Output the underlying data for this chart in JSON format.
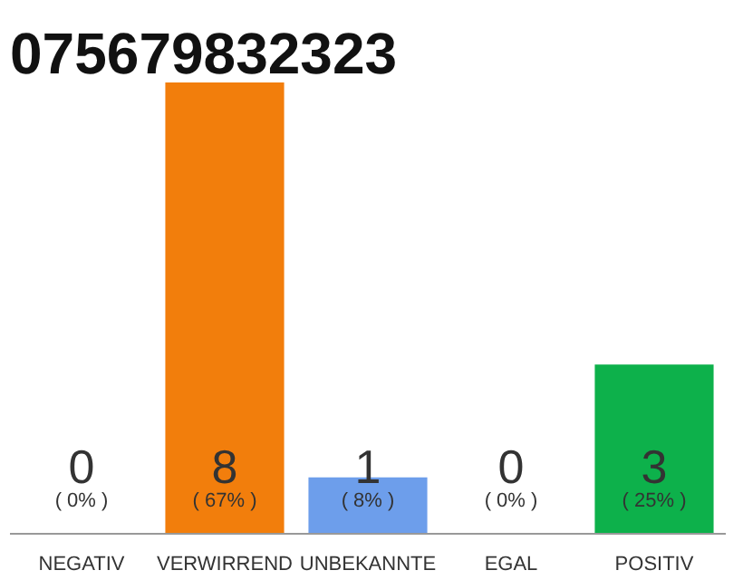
{
  "chart_data": {
    "type": "bar",
    "title": "075679832323",
    "categories": [
      "NEGATIV",
      "VERWIRREND",
      "UNBEKANNTE",
      "EGAL",
      "POSITIV"
    ],
    "values": [
      0,
      8,
      1,
      0,
      3
    ],
    "colors": [
      "#eeeeee",
      "#f27e0c",
      "#6d9eeb",
      "#eeeeee",
      "#0db14b"
    ],
    "data_labels": true,
    "annotations": [
      "( 0% )",
      "( 67% )",
      "( 8% )",
      "( 0% )",
      "( 25% )"
    ],
    "grid": false
  }
}
